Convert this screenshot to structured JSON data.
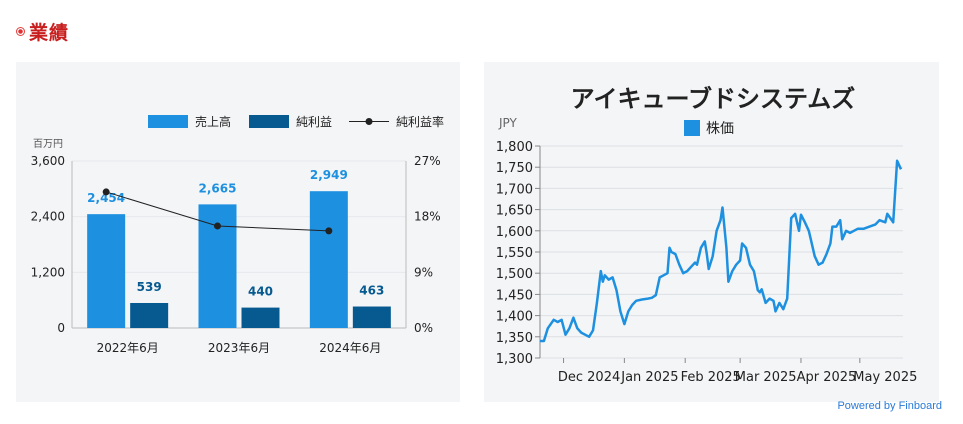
{
  "section": {
    "title": "業績"
  },
  "powered_by": "Powered by Finboard",
  "colors": {
    "revenue": "#1e90e0",
    "profit": "#075a90",
    "rate": "#222222",
    "stock": "#1e90e0",
    "title_red": "#c81e1e"
  },
  "chart_data": [
    {
      "type": "bar",
      "unit_label": "百万円",
      "categories": [
        "2022年6月",
        "2023年6月",
        "2024年6月"
      ],
      "series": [
        {
          "name": "売上高",
          "values": [
            2454,
            2665,
            2949
          ],
          "labels": [
            "2,454",
            "2,665",
            "2,949"
          ]
        },
        {
          "name": "純利益",
          "values": [
            539,
            440,
            463
          ],
          "labels": [
            "539",
            "440",
            "463"
          ]
        }
      ],
      "line_series": {
        "name": "純利益率",
        "values": [
          22.0,
          16.5,
          15.7
        ],
        "axis": "right"
      },
      "ylim": [
        0,
        3600
      ],
      "yticks": [
        "0",
        "1,200",
        "2,400",
        "3,600"
      ],
      "y2lim": [
        0,
        27
      ],
      "y2ticks": [
        "0%",
        "9%",
        "18%",
        "27%"
      ],
      "legend": "top-right",
      "grid": true
    },
    {
      "type": "line",
      "title": "アイキューブドシステムズ",
      "ylabel": "JPY",
      "series": [
        {
          "name": "株価"
        }
      ],
      "xticks": [
        "Dec 2024",
        "Jan 2025",
        "Feb 2025",
        "Mar 2025",
        "Apr 2025",
        "May 2025"
      ],
      "yticks": [
        "1,300",
        "1,350",
        "1,400",
        "1,450",
        "1,500",
        "1,550",
        "1,600",
        "1,650",
        "1,700",
        "1,750",
        "1,800"
      ],
      "ylim": [
        1300,
        1800
      ],
      "xlim": [
        "2024-11-19",
        "2025-05-23"
      ],
      "legend": "top-center",
      "grid": true,
      "points": [
        [
          "2024-11-19",
          1340
        ],
        [
          "2024-11-21",
          1340
        ],
        [
          "2024-11-23",
          1370
        ],
        [
          "2024-11-26",
          1390
        ],
        [
          "2024-11-28",
          1385
        ],
        [
          "2024-11-30",
          1390
        ],
        [
          "2024-12-02",
          1355
        ],
        [
          "2024-12-04",
          1370
        ],
        [
          "2024-12-06",
          1395
        ],
        [
          "2024-12-08",
          1370
        ],
        [
          "2024-12-10",
          1360
        ],
        [
          "2024-12-12",
          1355
        ],
        [
          "2024-12-14",
          1350
        ],
        [
          "2024-12-16",
          1365
        ],
        [
          "2024-12-18",
          1430
        ],
        [
          "2024-12-20",
          1505
        ],
        [
          "2024-12-21",
          1480
        ],
        [
          "2024-12-22",
          1495
        ],
        [
          "2024-12-24",
          1485
        ],
        [
          "2024-12-26",
          1490
        ],
        [
          "2024-12-28",
          1460
        ],
        [
          "2024-12-30",
          1410
        ],
        [
          "2025-01-01",
          1380
        ],
        [
          "2025-01-03",
          1410
        ],
        [
          "2025-01-05",
          1425
        ],
        [
          "2025-01-07",
          1435
        ],
        [
          "2025-01-10",
          1438
        ],
        [
          "2025-01-13",
          1440
        ],
        [
          "2025-01-15",
          1442
        ],
        [
          "2025-01-17",
          1448
        ],
        [
          "2025-01-19",
          1490
        ],
        [
          "2025-01-21",
          1495
        ],
        [
          "2025-01-23",
          1500
        ],
        [
          "2025-01-24",
          1560
        ],
        [
          "2025-01-25",
          1550
        ],
        [
          "2025-01-27",
          1545
        ],
        [
          "2025-01-29",
          1520
        ],
        [
          "2025-01-31",
          1500
        ],
        [
          "2025-02-02",
          1505
        ],
        [
          "2025-02-04",
          1515
        ],
        [
          "2025-02-06",
          1525
        ],
        [
          "2025-02-07",
          1520
        ],
        [
          "2025-02-09",
          1560
        ],
        [
          "2025-02-11",
          1575
        ],
        [
          "2025-02-12",
          1545
        ],
        [
          "2025-02-13",
          1510
        ],
        [
          "2025-02-15",
          1540
        ],
        [
          "2025-02-17",
          1600
        ],
        [
          "2025-02-19",
          1625
        ],
        [
          "2025-02-20",
          1655
        ],
        [
          "2025-02-22",
          1560
        ],
        [
          "2025-02-23",
          1480
        ],
        [
          "2025-02-25",
          1505
        ],
        [
          "2025-02-27",
          1520
        ],
        [
          "2025-03-01",
          1530
        ],
        [
          "2025-03-02",
          1570
        ],
        [
          "2025-03-04",
          1560
        ],
        [
          "2025-03-06",
          1520
        ],
        [
          "2025-03-08",
          1505
        ],
        [
          "2025-03-10",
          1460
        ],
        [
          "2025-03-11",
          1455
        ],
        [
          "2025-03-12",
          1462
        ],
        [
          "2025-03-14",
          1430
        ],
        [
          "2025-03-16",
          1440
        ],
        [
          "2025-03-18",
          1435
        ],
        [
          "2025-03-19",
          1410
        ],
        [
          "2025-03-21",
          1430
        ],
        [
          "2025-03-23",
          1415
        ],
        [
          "2025-03-25",
          1440
        ],
        [
          "2025-03-27",
          1630
        ],
        [
          "2025-03-29",
          1640
        ],
        [
          "2025-03-31",
          1600
        ],
        [
          "2025-04-01",
          1638
        ],
        [
          "2025-04-03",
          1620
        ],
        [
          "2025-04-05",
          1600
        ],
        [
          "2025-04-06",
          1580
        ],
        [
          "2025-04-08",
          1540
        ],
        [
          "2025-04-10",
          1520
        ],
        [
          "2025-04-12",
          1525
        ],
        [
          "2025-04-14",
          1545
        ],
        [
          "2025-04-16",
          1570
        ],
        [
          "2025-04-17",
          1610
        ],
        [
          "2025-04-19",
          1610
        ],
        [
          "2025-04-21",
          1625
        ],
        [
          "2025-04-22",
          1580
        ],
        [
          "2025-04-24",
          1600
        ],
        [
          "2025-04-26",
          1595
        ],
        [
          "2025-04-28",
          1600
        ],
        [
          "2025-04-30",
          1605
        ],
        [
          "2025-05-03",
          1605
        ],
        [
          "2025-05-06",
          1610
        ],
        [
          "2025-05-09",
          1615
        ],
        [
          "2025-05-11",
          1625
        ],
        [
          "2025-05-14",
          1620
        ],
        [
          "2025-05-15",
          1640
        ],
        [
          "2025-05-18",
          1620
        ],
        [
          "2025-05-20",
          1765
        ],
        [
          "2025-05-22",
          1745
        ]
      ]
    }
  ]
}
